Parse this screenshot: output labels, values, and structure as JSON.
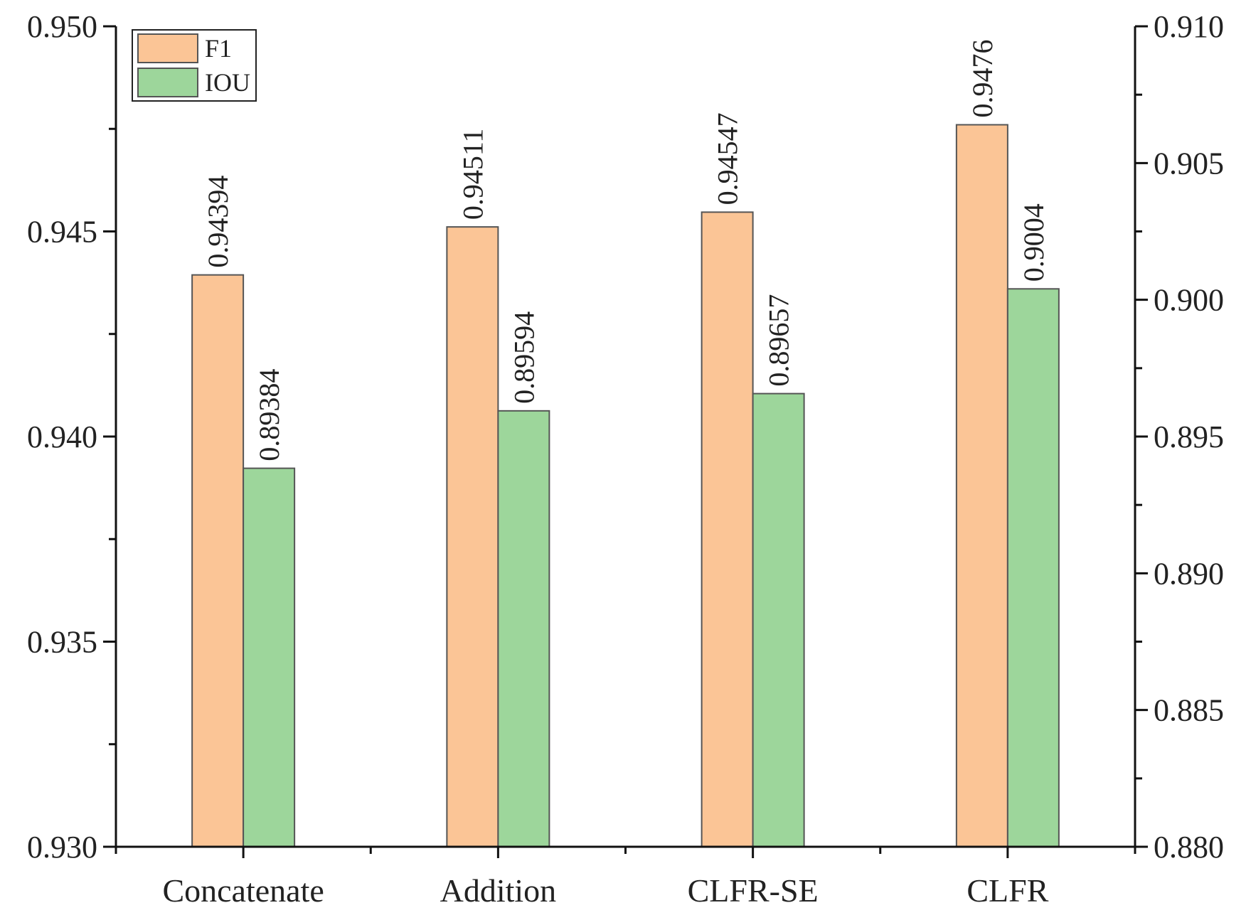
{
  "chart_data": {
    "type": "bar",
    "categories": [
      "Concatenate",
      "Addition",
      "CLFR-SE",
      "CLFR"
    ],
    "series": [
      {
        "name": "F1",
        "axis": "left",
        "values": [
          0.94394,
          0.94511,
          0.94547,
          0.9476
        ],
        "labels": [
          "0.94394",
          "0.94511",
          "0.94547",
          "0.9476"
        ],
        "color": "#FBC596"
      },
      {
        "name": "IOU",
        "axis": "right",
        "values": [
          0.89384,
          0.89594,
          0.89657,
          0.9004
        ],
        "labels": [
          "0.89384",
          "0.89594",
          "0.89657",
          "0.9004"
        ],
        "color": "#9DD69B"
      }
    ],
    "left_axis": {
      "ylim": [
        0.93,
        0.95
      ],
      "ticks": [
        0.93,
        0.935,
        0.94,
        0.945,
        0.95
      ],
      "tick_labels": [
        "0.930",
        "0.935",
        "0.940",
        "0.945",
        "0.950"
      ]
    },
    "right_axis": {
      "ylim": [
        0.88,
        0.91
      ],
      "ticks": [
        0.88,
        0.885,
        0.89,
        0.895,
        0.9,
        0.905,
        0.91
      ],
      "tick_labels": [
        "0.880",
        "0.885",
        "0.890",
        "0.895",
        "0.900",
        "0.905",
        "0.910"
      ]
    },
    "title": "",
    "xlabel": "",
    "ylabel": "",
    "legend": {
      "position": "top-left",
      "entries": [
        "F1",
        "IOU"
      ]
    },
    "grid": false
  }
}
